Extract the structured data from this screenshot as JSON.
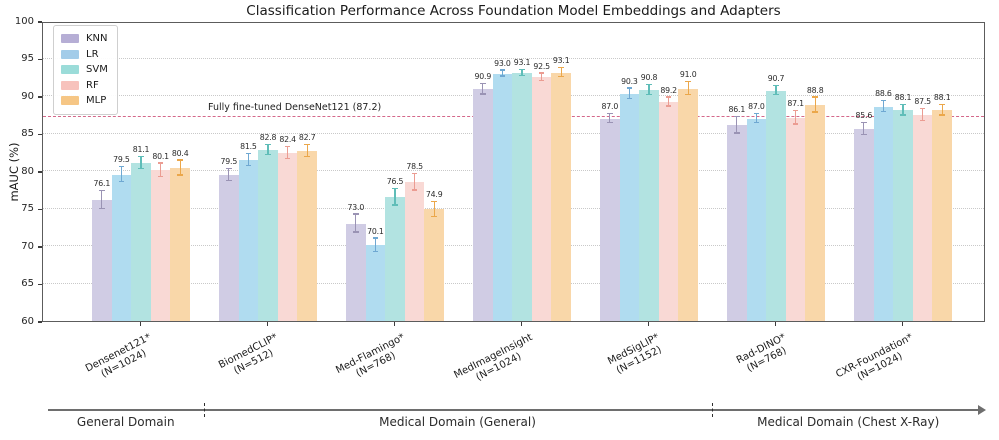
{
  "title": "Classification Performance Across Foundation Model Embeddings and Adapters",
  "chart_data": {
    "type": "bar",
    "title": "Classification Performance Across Foundation Model Embeddings and Adapters",
    "ylabel": "mAUC (%)",
    "xlabel": "",
    "ylim": [
      60,
      100
    ],
    "yticks": [
      60,
      65,
      70,
      75,
      80,
      85,
      90,
      95,
      100
    ],
    "grid": "dotted horizontal at yticks",
    "legend_position": "upper left",
    "categories": [
      {
        "label": "Densenet121*",
        "sub": "(N=1024)"
      },
      {
        "label": "BiomedCLIP*",
        "sub": "(N=512)"
      },
      {
        "label": "Med-Flamingo*",
        "sub": "(N=768)"
      },
      {
        "label": "MedImageInsight",
        "sub": "(N=1024)"
      },
      {
        "label": "MedSigLIP*",
        "sub": "(N=1152)"
      },
      {
        "label": "Rad-DINO*",
        "sub": "(N=768)"
      },
      {
        "label": "CXR-Foundation*",
        "sub": "(N=1024)"
      }
    ],
    "series": [
      {
        "name": "KNN",
        "color": "#b6aed5",
        "fill": "#d0cce4",
        "err_color": "#9a93b4",
        "values": [
          76.1,
          79.5,
          73.0,
          90.9,
          87.0,
          86.1,
          85.6
        ],
        "errors": [
          1.2,
          0.8,
          1.2,
          0.7,
          0.6,
          1.1,
          0.8
        ]
      },
      {
        "name": "LR",
        "color": "#a3cce9",
        "fill": "#b0dcf0",
        "err_color": "#6fa8d2",
        "values": [
          79.5,
          81.5,
          70.1,
          93.0,
          90.3,
          87.0,
          88.6
        ],
        "errors": [
          1.0,
          0.8,
          0.9,
          0.4,
          0.7,
          0.6,
          0.7
        ]
      },
      {
        "name": "SVM",
        "color": "#9bdcd9",
        "fill": "#b2e3e1",
        "err_color": "#5fbdb8",
        "values": [
          81.1,
          82.8,
          76.5,
          93.1,
          90.8,
          90.7,
          88.1
        ],
        "errors": [
          0.8,
          0.7,
          1.1,
          0.4,
          0.7,
          0.6,
          0.7
        ]
      },
      {
        "name": "RF",
        "color": "#f7c2bc",
        "fill": "#f9d9d5",
        "err_color": "#eb9c92",
        "values": [
          80.1,
          82.4,
          78.5,
          92.5,
          89.2,
          87.1,
          87.5
        ],
        "errors": [
          0.9,
          0.8,
          1.1,
          0.5,
          0.6,
          0.9,
          0.8
        ]
      },
      {
        "name": "MLP",
        "color": "#f6c685",
        "fill": "#f9d7a9",
        "err_color": "#eba74a",
        "values": [
          80.4,
          82.7,
          74.9,
          93.1,
          91.0,
          88.8,
          88.1
        ],
        "errors": [
          1.0,
          0.8,
          1.0,
          0.6,
          0.9,
          1.0,
          0.7
        ]
      }
    ],
    "reference_line": {
      "value": 87.2,
      "label": "Fully fine-tuned DenseNet121 (87.2)",
      "color": "#d4688a",
      "style": "dashed"
    },
    "domain_axis": {
      "segments": [
        {
          "label": "General Domain",
          "groups": [
            "Densenet121*"
          ]
        },
        {
          "label": "Medical Domain (General)",
          "groups": [
            "BiomedCLIP*",
            "Med-Flamingo*",
            "MedImageInsight",
            "MedSigLIP*"
          ]
        },
        {
          "label": "Medical Domain (Chest X-Ray)",
          "groups": [
            "Rad-DINO*",
            "CXR-Foundation*"
          ]
        }
      ],
      "dividers_between_groups": [
        [
          0,
          1
        ],
        [
          4,
          5
        ]
      ],
      "arrow": "right end"
    }
  }
}
